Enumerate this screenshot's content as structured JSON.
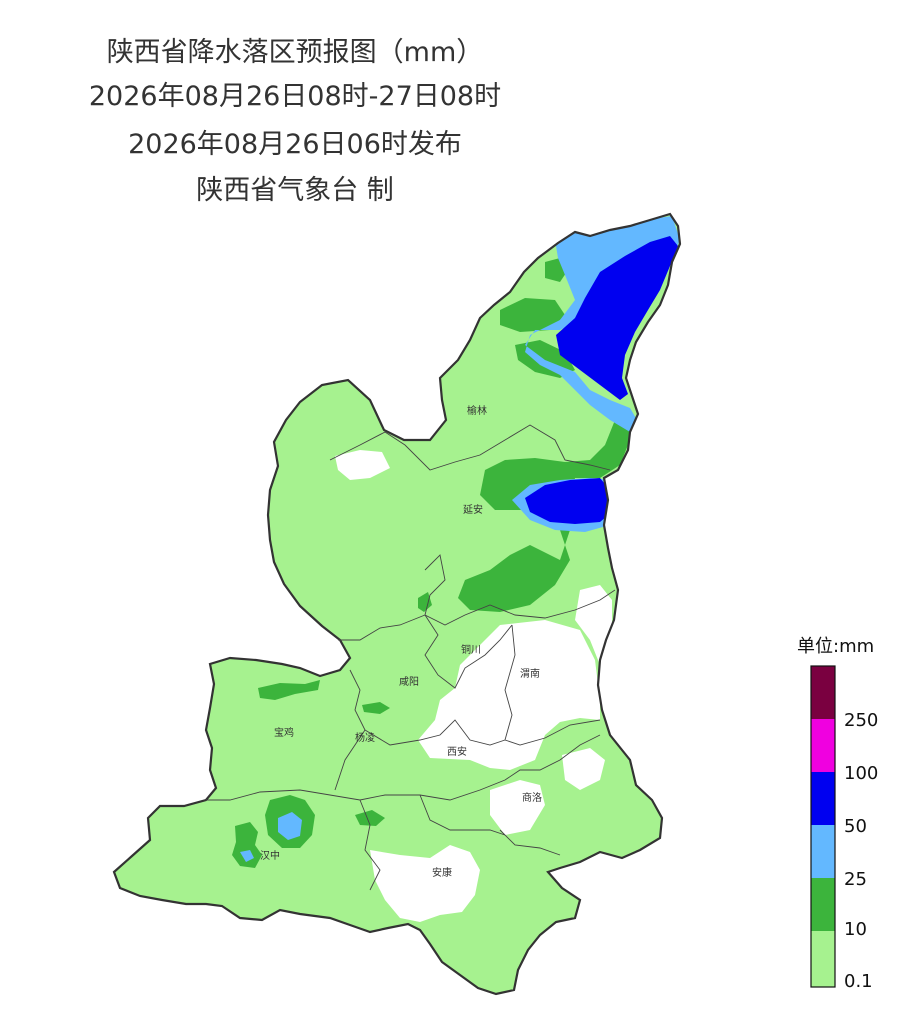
{
  "title": {
    "line1": "陕西省降水落区预报图（mm）",
    "line2": "2026年08月26日08时-27日08时",
    "line3": "2026年08月26日06时发布",
    "line4": "陕西省气象台 制"
  },
  "cities": [
    {
      "name": "榆林"
    },
    {
      "name": "延安"
    },
    {
      "name": "铜川"
    },
    {
      "name": "渭南"
    },
    {
      "name": "咸阳"
    },
    {
      "name": "宝鸡"
    },
    {
      "name": "杨凌"
    },
    {
      "name": "西安"
    },
    {
      "name": "商洛"
    },
    {
      "name": "汉中"
    },
    {
      "name": "安康"
    }
  ],
  "legend": {
    "title": "单位:mm",
    "labels": [
      "250",
      "100",
      "50",
      "25",
      "10",
      "0.1"
    ],
    "colors": {
      "above_250": "#7a0040",
      "100_250": "#f000e0",
      "50_100": "#0000f0",
      "25_50": "#63b8ff",
      "10_25": "#3cb43c",
      "0.1_10": "#a6f28f"
    }
  },
  "colors": {
    "light_green": "#a6f28f",
    "green": "#3cb43c",
    "light_blue": "#63b8ff",
    "blue": "#0000f0",
    "border": "#333333"
  }
}
